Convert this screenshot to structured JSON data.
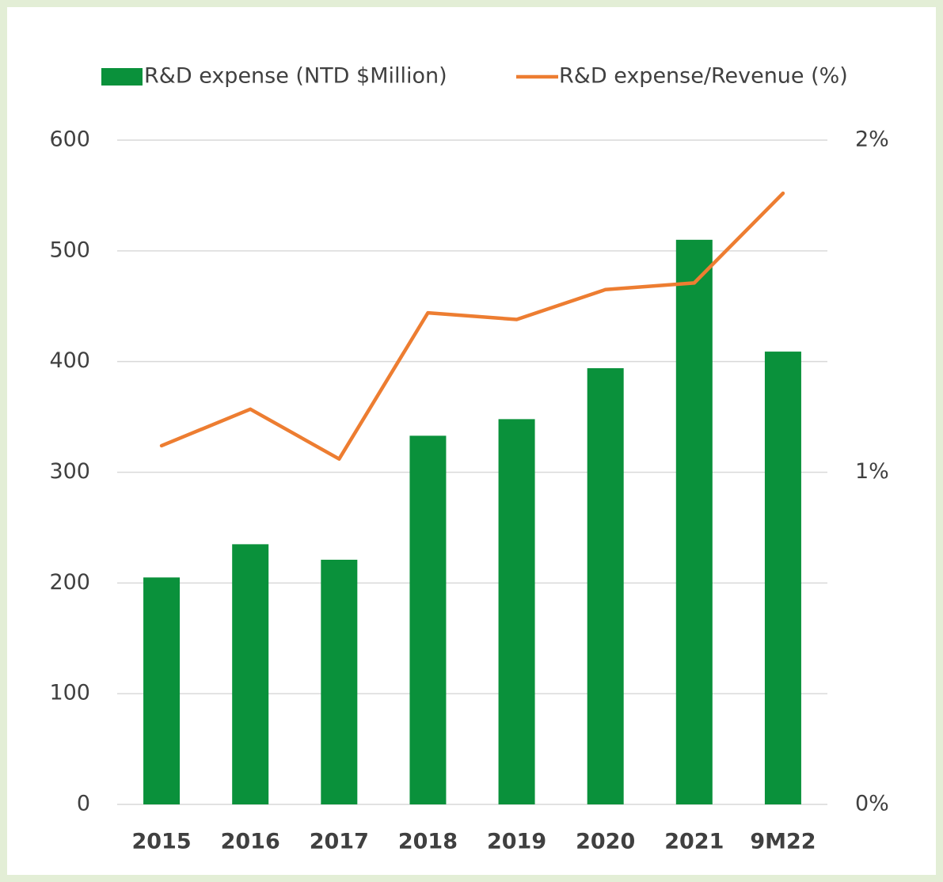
{
  "chart_data": {
    "type": "bar",
    "categories": [
      "2015",
      "2016",
      "2017",
      "2018",
      "2019",
      "2020",
      "2021",
      "9M22"
    ],
    "series": [
      {
        "name": "R&D expense (NTD $Million)",
        "type": "bar",
        "color": "#0a913b",
        "values": [
          205,
          235,
          221,
          333,
          348,
          394,
          510,
          409
        ]
      },
      {
        "name": "R&D expense/Revenue (%)",
        "type": "line",
        "axis": "y2",
        "color": "#ed7d31",
        "values": [
          1.08,
          1.19,
          1.04,
          1.48,
          1.46,
          1.55,
          1.57,
          1.84
        ]
      }
    ],
    "ylim": [
      0,
      600
    ],
    "yticks": [
      0,
      100,
      200,
      300,
      400,
      500,
      600
    ],
    "y2lim": [
      0,
      2
    ],
    "y2ticks": [
      {
        "value": 0,
        "label": "0%"
      },
      {
        "value": 1,
        "label": "1%"
      },
      {
        "value": 2,
        "label": "2%"
      }
    ],
    "grid": true,
    "legend": "top"
  }
}
